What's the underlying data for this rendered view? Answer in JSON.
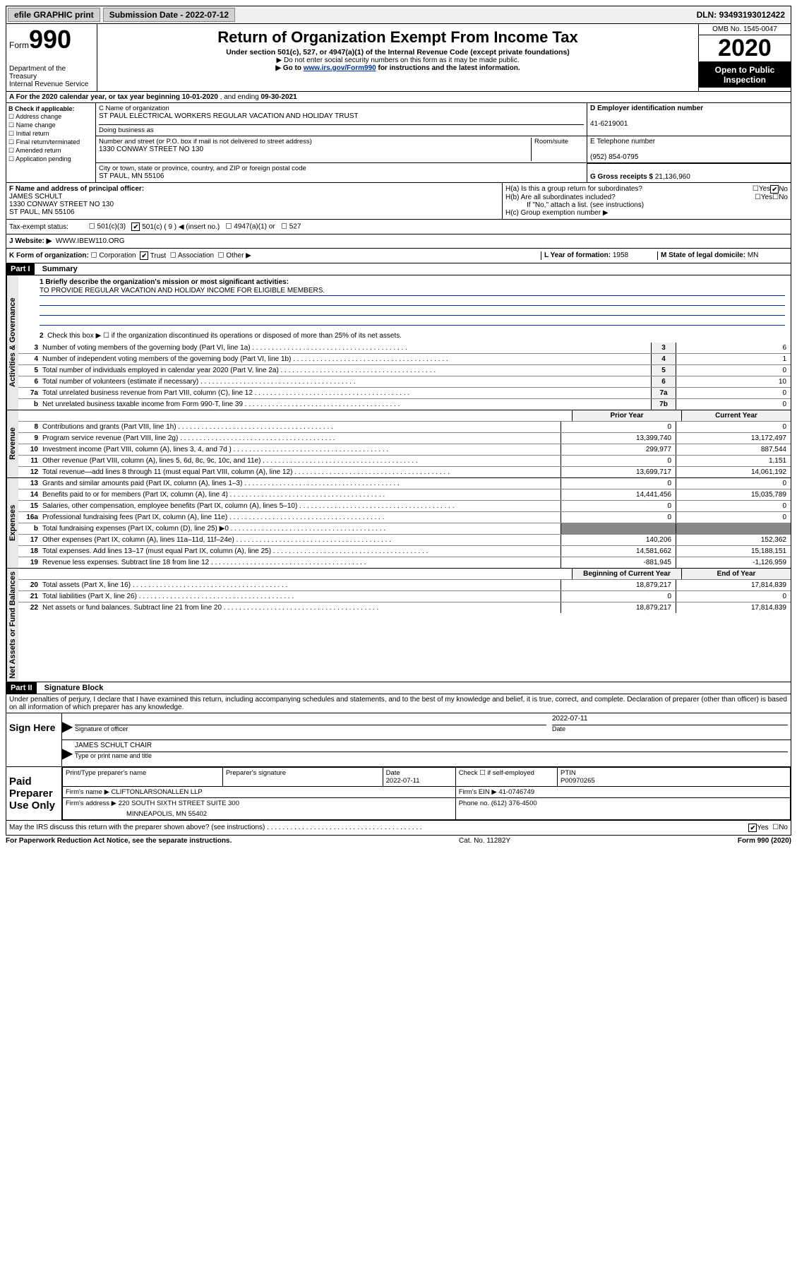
{
  "top_bar": {
    "efile": "efile GRAPHIC print",
    "submission_label": "Submission Date - ",
    "submission_date": "2022-07-12",
    "dln_label": "DLN: ",
    "dln": "93493193012422"
  },
  "header": {
    "form_label": "Form",
    "form_number": "990",
    "dept": "Department of the Treasury\nInternal Revenue Service",
    "title": "Return of Organization Exempt From Income Tax",
    "subtitle": "Under section 501(c), 527, or 4947(a)(1) of the Internal Revenue Code (except private foundations)",
    "note1": "▶ Do not enter social security numbers on this form as it may be made public.",
    "note2_pre": "▶ Go to ",
    "note2_link": "www.irs.gov/Form990",
    "note2_post": " for instructions and the latest information.",
    "omb": "OMB No. 1545-0047",
    "year": "2020",
    "open": "Open to Public Inspection"
  },
  "line_a": {
    "label": "A For the 2020 calendar year, or tax year beginning ",
    "begin": "10-01-2020",
    "mid": " , and ending ",
    "end": "09-30-2021"
  },
  "box_b": {
    "title": "B Check if applicable:",
    "opts": [
      "Address change",
      "Name change",
      "Initial return",
      "Final return/terminated",
      "Amended return",
      "Application pending"
    ]
  },
  "box_c": {
    "name_label": "C Name of organization",
    "name": "ST PAUL ELECTRICAL WORKERS REGULAR VACATION AND HOLIDAY TRUST",
    "dba_label": "Doing business as",
    "dba": "",
    "street_label": "Number and street (or P.O. box if mail is not delivered to street address)",
    "room_label": "Room/suite",
    "street": "1330 CONWAY STREET NO 130",
    "city_label": "City or town, state or province, country, and ZIP or foreign postal code",
    "city": "ST PAUL, MN  55106"
  },
  "box_d": {
    "label": "D Employer identification number",
    "ein": "41-6219001"
  },
  "box_e": {
    "label": "E Telephone number",
    "phone": "(952) 854-0795"
  },
  "box_g": {
    "label": "G Gross receipts $ ",
    "amount": "21,136,960"
  },
  "box_f": {
    "label": "F Name and address of principal officer:",
    "name": "JAMES SCHULT",
    "street": "1330 CONWAY STREET NO 130",
    "city": "ST PAUL, MN  55106"
  },
  "box_h": {
    "ha_label": "H(a)  Is this a group return for subordinates?",
    "hb_label": "H(b)  Are all subordinates included?",
    "hb_note": "If \"No,\" attach a list. (see instructions)",
    "hc_label": "H(c)  Group exemption number ▶"
  },
  "tax_exempt": {
    "label": "Tax-exempt status:",
    "o1": "501(c)(3)",
    "o2": "501(c) ( 9 ) ◀ (insert no.)",
    "o3": "4947(a)(1) or",
    "o4": "527"
  },
  "website": {
    "label": "J   Website: ▶",
    "url": "WWW.IBEW110.ORG"
  },
  "line_k": {
    "label": "K Form of organization:",
    "opts": [
      "Corporation",
      "Trust",
      "Association",
      "Other ▶"
    ],
    "checked": "Trust",
    "l_label": "L Year of formation: ",
    "l_val": "1958",
    "m_label": "M State of legal domicile: ",
    "m_val": "MN"
  },
  "part1": {
    "header": "Part I",
    "title": "Summary",
    "q1_label": "1  Briefly describe the organization's mission or most significant activities:",
    "q1_answer": "TO PROVIDE REGULAR VACATION AND HOLIDAY INCOME FOR ELIGIBLE MEMBERS.",
    "q2": "Check this box ▶ ☐ if the organization discontinued its operations or disposed of more than 25% of its net assets.",
    "sections": {
      "gov": "Activities & Governance",
      "rev": "Revenue",
      "exp": "Expenses",
      "net": "Net Assets or Fund Balances"
    },
    "single_col_rows": [
      {
        "n": "3",
        "t": "Number of voting members of the governing body (Part VI, line 1a)",
        "c": "3",
        "v": "6"
      },
      {
        "n": "4",
        "t": "Number of independent voting members of the governing body (Part VI, line 1b)",
        "c": "4",
        "v": "1"
      },
      {
        "n": "5",
        "t": "Total number of individuals employed in calendar year 2020 (Part V, line 2a)",
        "c": "5",
        "v": "0"
      },
      {
        "n": "6",
        "t": "Total number of volunteers (estimate if necessary)",
        "c": "6",
        "v": "10"
      },
      {
        "n": "7a",
        "t": "Total unrelated business revenue from Part VIII, column (C), line 12",
        "c": "7a",
        "v": "0"
      },
      {
        "n": "b",
        "t": "Net unrelated business taxable income from Form 990-T, line 39",
        "c": "7b",
        "v": "0"
      }
    ],
    "two_col_header": {
      "prior": "Prior Year",
      "current": "Current Year"
    },
    "rev_rows": [
      {
        "n": "8",
        "t": "Contributions and grants (Part VIII, line 1h)",
        "p": "0",
        "c": "0"
      },
      {
        "n": "9",
        "t": "Program service revenue (Part VIII, line 2g)",
        "p": "13,399,740",
        "c": "13,172,497"
      },
      {
        "n": "10",
        "t": "Investment income (Part VIII, column (A), lines 3, 4, and 7d )",
        "p": "299,977",
        "c": "887,544"
      },
      {
        "n": "11",
        "t": "Other revenue (Part VIII, column (A), lines 5, 6d, 8c, 9c, 10c, and 11e)",
        "p": "0",
        "c": "1,151"
      },
      {
        "n": "12",
        "t": "Total revenue—add lines 8 through 11 (must equal Part VIII, column (A), line 12)",
        "p": "13,699,717",
        "c": "14,061,192"
      }
    ],
    "exp_rows": [
      {
        "n": "13",
        "t": "Grants and similar amounts paid (Part IX, column (A), lines 1–3)",
        "p": "0",
        "c": "0"
      },
      {
        "n": "14",
        "t": "Benefits paid to or for members (Part IX, column (A), line 4)",
        "p": "14,441,456",
        "c": "15,035,789"
      },
      {
        "n": "15",
        "t": "Salaries, other compensation, employee benefits (Part IX, column (A), lines 5–10)",
        "p": "0",
        "c": "0"
      },
      {
        "n": "16a",
        "t": "Professional fundraising fees (Part IX, column (A), line 11e)",
        "p": "0",
        "c": "0"
      },
      {
        "n": "b",
        "t": "Total fundraising expenses (Part IX, column (D), line 25)  ▶0",
        "p": "",
        "c": "",
        "nb": true
      },
      {
        "n": "17",
        "t": "Other expenses (Part IX, column (A), lines 11a–11d, 11f–24e)",
        "p": "140,206",
        "c": "152,362"
      },
      {
        "n": "18",
        "t": "Total expenses. Add lines 13–17 (must equal Part IX, column (A), line 25)",
        "p": "14,581,662",
        "c": "15,188,151"
      },
      {
        "n": "19",
        "t": "Revenue less expenses. Subtract line 18 from line 12",
        "p": "-881,945",
        "c": "-1,126,959"
      }
    ],
    "net_header": {
      "prior": "Beginning of Current Year",
      "current": "End of Year"
    },
    "net_rows": [
      {
        "n": "20",
        "t": "Total assets (Part X, line 16)",
        "p": "18,879,217",
        "c": "17,814,839"
      },
      {
        "n": "21",
        "t": "Total liabilities (Part X, line 26)",
        "p": "0",
        "c": "0"
      },
      {
        "n": "22",
        "t": "Net assets or fund balances. Subtract line 21 from line 20",
        "p": "18,879,217",
        "c": "17,814,839"
      }
    ]
  },
  "part2": {
    "header": "Part II",
    "title": "Signature Block",
    "perjury": "Under penalties of perjury, I declare that I have examined this return, including accompanying schedules and statements, and to the best of my knowledge and belief, it is true, correct, and complete. Declaration of preparer (other than officer) is based on all information of which preparer has any knowledge."
  },
  "sign": {
    "label": "Sign Here",
    "sig_label": "Signature of officer",
    "date_label": "Date",
    "date": "2022-07-11",
    "name": "JAMES SCHULT  CHAIR",
    "name_label": "Type or print name and title"
  },
  "preparer": {
    "label": "Paid Preparer Use Only",
    "print_name_label": "Print/Type preparer's name",
    "sig_label": "Preparer's signature",
    "date_label": "Date",
    "date": "2022-07-11",
    "check_label": "Check ☐ if self-employed",
    "ptin_label": "PTIN",
    "ptin": "P00970265",
    "firm_name_label": "Firm's name    ▶",
    "firm_name": "CLIFTONLARSONALLEN LLP",
    "firm_ein_label": "Firm's EIN ▶",
    "firm_ein": "41-0746749",
    "firm_addr_label": "Firm's address ▶",
    "firm_addr1": "220 SOUTH SIXTH STREET SUITE 300",
    "firm_addr2": "MINNEAPOLIS, MN  55402",
    "phone_label": "Phone no. ",
    "phone": "(612) 376-4500"
  },
  "discuss": {
    "text": "May the IRS discuss this return with the preparer shown above? (see instructions)",
    "yes_checked": true
  },
  "footer": {
    "left": "For Paperwork Reduction Act Notice, see the separate instructions.",
    "mid": "Cat. No. 11282Y",
    "right": "Form 990 (2020)"
  }
}
